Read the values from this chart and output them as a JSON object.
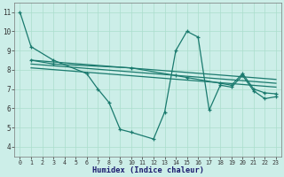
{
  "background_color": "#cceee8",
  "line_color": "#1a7a6e",
  "grid_color": "#aaddcc",
  "xlabel": "Humidex (Indice chaleur)",
  "xlim": [
    -0.5,
    23.5
  ],
  "ylim": [
    3.5,
    11.5
  ],
  "xticks": [
    0,
    1,
    2,
    3,
    4,
    5,
    6,
    7,
    8,
    9,
    10,
    11,
    12,
    13,
    14,
    15,
    16,
    17,
    18,
    19,
    20,
    21,
    22,
    23
  ],
  "yticks": [
    4,
    5,
    6,
    7,
    8,
    9,
    10,
    11
  ],
  "series": [
    {
      "x": [
        0,
        1,
        3,
        6,
        7,
        8,
        9,
        10,
        12,
        13,
        14,
        15,
        16,
        17,
        18,
        19,
        20,
        21,
        22,
        23
      ],
      "y": [
        11.0,
        9.2,
        8.5,
        7.8,
        7.0,
        6.3,
        4.9,
        4.75,
        4.4,
        5.8,
        9.0,
        10.0,
        9.7,
        5.9,
        7.2,
        7.1,
        7.7,
        6.9,
        6.5,
        6.6
      ],
      "marker": true
    },
    {
      "x": [
        1,
        3,
        10,
        14,
        15,
        18,
        19,
        20,
        21,
        22,
        23
      ],
      "y": [
        8.5,
        8.3,
        8.1,
        7.7,
        7.6,
        7.3,
        7.2,
        7.8,
        7.0,
        6.8,
        6.75
      ],
      "marker": true
    },
    {
      "x": [
        1,
        23
      ],
      "y": [
        8.5,
        7.5
      ],
      "marker": false
    },
    {
      "x": [
        1,
        23
      ],
      "y": [
        8.3,
        7.3
      ],
      "marker": false
    },
    {
      "x": [
        1,
        23
      ],
      "y": [
        8.1,
        7.1
      ],
      "marker": false
    }
  ]
}
